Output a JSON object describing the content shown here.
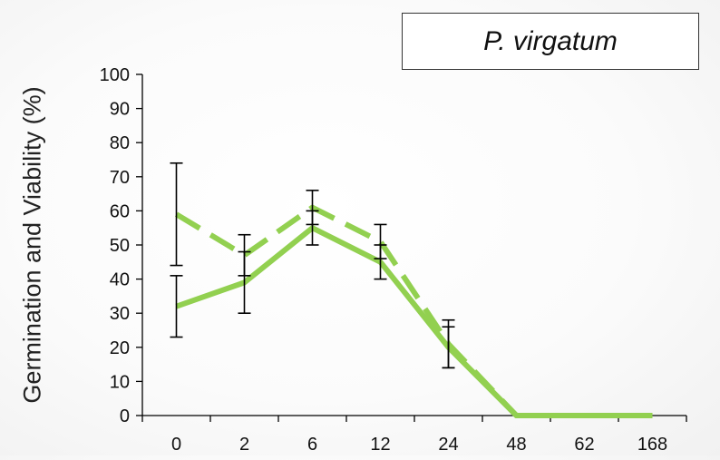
{
  "chart_data": {
    "type": "line",
    "title": "P. virgatum",
    "ylabel": "Germination and Viability (%)",
    "xlabel": "",
    "categories": [
      "0",
      "2",
      "6",
      "12",
      "24",
      "48",
      "62",
      "168"
    ],
    "ylim": [
      0,
      100
    ],
    "yticks": [
      0,
      10,
      20,
      30,
      40,
      50,
      60,
      70,
      80,
      90,
      100
    ],
    "grid": false,
    "series": [
      {
        "style": "solid",
        "color": "#92d050",
        "values": [
          32,
          39,
          55,
          45,
          20,
          0,
          0,
          0
        ],
        "error": [
          9,
          9,
          5,
          5,
          6,
          null,
          null,
          null
        ]
      },
      {
        "style": "dashed",
        "color": "#92d050",
        "values": [
          59,
          47,
          61,
          51,
          21,
          0,
          0,
          0
        ],
        "error": [
          15,
          6,
          5,
          5,
          7,
          null,
          null,
          null
        ]
      }
    ]
  }
}
